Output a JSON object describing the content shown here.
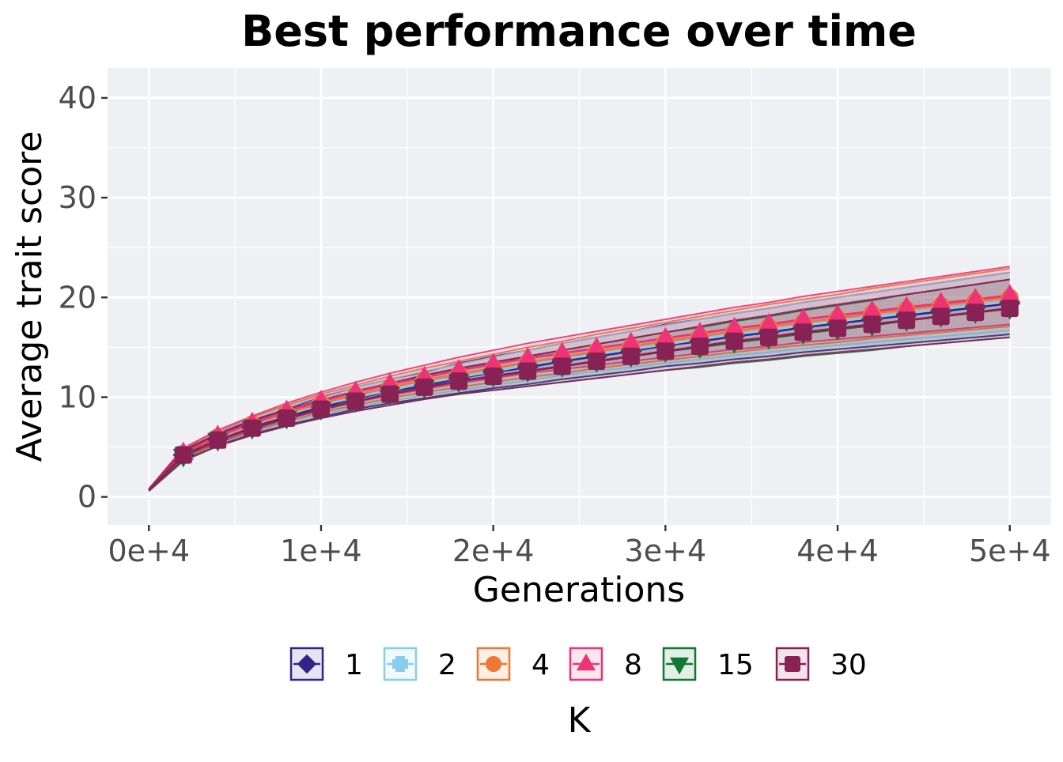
{
  "chart_data": {
    "type": "line",
    "title": "Best performance over time",
    "xlabel": "Generations",
    "ylabel": "Average trait score",
    "xlim": [
      -2400,
      52400
    ],
    "ylim": [
      -2.8,
      43
    ],
    "x_ticks": [
      0,
      10000,
      20000,
      30000,
      40000,
      50000
    ],
    "x_tick_labels": [
      "0e+4",
      "1e+4",
      "2e+4",
      "3e+4",
      "4e+4",
      "5e+4"
    ],
    "y_ticks": [
      0,
      10,
      20,
      30,
      40
    ],
    "y_tick_labels": [
      "0",
      "10",
      "20",
      "30",
      "40"
    ],
    "grid": true,
    "legend": {
      "title": "K",
      "position": "bottom"
    },
    "x": [
      0,
      2000,
      4000,
      6000,
      8000,
      10000,
      12000,
      14000,
      16000,
      18000,
      20000,
      22000,
      24000,
      26000,
      28000,
      30000,
      32000,
      34000,
      36000,
      38000,
      40000,
      42000,
      44000,
      46000,
      48000,
      50000
    ],
    "series": [
      {
        "name": "1",
        "color": "#332288",
        "marker": "diamond",
        "values": [
          0.7,
          4.2,
          5.8,
          7.0,
          8.0,
          9.0,
          9.9,
          10.6,
          11.2,
          11.9,
          12.5,
          13.0,
          13.6,
          14.1,
          14.6,
          15.2,
          15.6,
          16.1,
          16.5,
          17.0,
          17.4,
          17.8,
          18.2,
          18.6,
          19.0,
          19.4
        ],
        "lower": [
          0.6,
          3.7,
          5.2,
          6.3,
          7.2,
          8.0,
          8.8,
          9.4,
          9.9,
          10.4,
          10.9,
          11.3,
          11.8,
          12.2,
          12.6,
          13.1,
          13.4,
          13.8,
          14.1,
          14.5,
          14.8,
          15.1,
          15.4,
          15.7,
          16.0,
          16.3
        ],
        "upper": [
          0.8,
          4.7,
          6.4,
          7.7,
          8.8,
          10.0,
          11.0,
          11.8,
          12.5,
          13.4,
          14.1,
          14.7,
          15.4,
          16.0,
          16.6,
          17.3,
          17.8,
          18.4,
          18.9,
          19.5,
          20.0,
          20.5,
          21.0,
          21.5,
          22.0,
          22.5
        ]
      },
      {
        "name": "2",
        "color": "#88CCEE",
        "marker": "plus",
        "values": [
          0.7,
          4.3,
          5.9,
          7.2,
          8.3,
          9.2,
          10.0,
          10.7,
          11.4,
          12.0,
          12.6,
          13.2,
          13.8,
          14.3,
          14.8,
          15.3,
          15.8,
          16.3,
          16.7,
          17.2,
          17.6,
          18.0,
          18.4,
          18.8,
          19.2,
          19.6
        ],
        "lower": [
          0.6,
          3.8,
          5.3,
          6.5,
          7.5,
          8.3,
          9.0,
          9.6,
          10.2,
          10.7,
          11.2,
          11.7,
          12.2,
          12.6,
          13.0,
          13.4,
          13.8,
          14.2,
          14.5,
          14.9,
          15.2,
          15.5,
          15.8,
          16.1,
          16.4,
          16.7
        ],
        "upper": [
          0.8,
          4.8,
          6.5,
          7.9,
          9.1,
          10.1,
          11.0,
          11.8,
          12.6,
          13.3,
          14.0,
          14.7,
          15.4,
          16.0,
          16.6,
          17.2,
          17.8,
          18.4,
          18.9,
          19.5,
          20.0,
          20.5,
          21.0,
          21.5,
          22.0,
          22.5
        ]
      },
      {
        "name": "4",
        "color": "#EE7733",
        "marker": "circle",
        "values": [
          0.7,
          4.3,
          6.0,
          7.3,
          8.4,
          9.4,
          10.2,
          11.0,
          11.7,
          12.3,
          12.9,
          13.5,
          14.0,
          14.6,
          15.1,
          15.6,
          16.1,
          16.6,
          17.1,
          17.5,
          17.9,
          18.4,
          18.8,
          19.2,
          19.6,
          20.0
        ],
        "lower": [
          0.6,
          3.8,
          5.4,
          6.6,
          7.6,
          8.5,
          9.2,
          9.9,
          10.5,
          11.0,
          11.5,
          12.0,
          12.4,
          12.9,
          13.3,
          13.7,
          14.1,
          14.5,
          14.9,
          15.2,
          15.5,
          15.9,
          16.2,
          16.5,
          16.8,
          17.1
        ],
        "upper": [
          0.8,
          4.8,
          6.6,
          8.0,
          9.2,
          10.3,
          11.2,
          12.1,
          12.9,
          13.6,
          14.3,
          15.0,
          15.6,
          16.3,
          16.9,
          17.5,
          18.1,
          18.7,
          19.3,
          19.8,
          20.3,
          20.9,
          21.4,
          21.9,
          22.4,
          22.9
        ]
      },
      {
        "name": "8",
        "color": "#EE3377",
        "marker": "triangle",
        "values": [
          0.7,
          4.4,
          6.1,
          7.4,
          8.6,
          9.6,
          10.5,
          11.3,
          12.0,
          12.7,
          13.3,
          13.9,
          14.4,
          14.9,
          15.4,
          15.9,
          16.4,
          16.9,
          17.3,
          17.8,
          18.2,
          18.6,
          19.0,
          19.4,
          19.8,
          20.2
        ],
        "lower": [
          0.6,
          3.9,
          5.5,
          6.7,
          7.8,
          8.7,
          9.5,
          10.2,
          10.8,
          11.4,
          11.9,
          12.4,
          12.8,
          13.2,
          13.6,
          14.0,
          14.4,
          14.8,
          15.1,
          15.5,
          15.8,
          16.1,
          16.4,
          16.7,
          17.0,
          17.3
        ],
        "upper": [
          0.8,
          4.9,
          6.7,
          8.1,
          9.4,
          10.5,
          11.5,
          12.4,
          13.2,
          14.0,
          14.7,
          15.4,
          16.0,
          16.6,
          17.2,
          17.8,
          18.4,
          19.0,
          19.5,
          20.1,
          20.6,
          21.1,
          21.6,
          22.1,
          22.6,
          23.1
        ]
      },
      {
        "name": "15",
        "color": "#117733",
        "marker": "triangle-down",
        "values": [
          0.7,
          4.1,
          5.7,
          6.9,
          7.9,
          8.8,
          9.6,
          10.3,
          11.0,
          11.6,
          12.1,
          12.6,
          13.1,
          13.6,
          14.1,
          14.6,
          15.0,
          15.5,
          15.9,
          16.4,
          16.8,
          17.2,
          17.7,
          18.1,
          18.5,
          18.9
        ],
        "lower": [
          0.6,
          3.6,
          5.1,
          6.2,
          7.1,
          7.9,
          8.6,
          9.2,
          9.8,
          10.3,
          10.7,
          11.1,
          11.5,
          11.9,
          12.3,
          12.7,
          13.0,
          13.4,
          13.7,
          14.1,
          14.4,
          14.7,
          15.1,
          15.4,
          15.7,
          16.0
        ],
        "upper": [
          0.8,
          4.6,
          6.3,
          7.6,
          8.7,
          9.7,
          10.6,
          11.4,
          12.2,
          12.9,
          13.5,
          14.1,
          14.7,
          15.3,
          15.9,
          16.5,
          17.0,
          17.6,
          18.1,
          18.7,
          19.2,
          19.7,
          20.3,
          20.8,
          21.3,
          21.8
        ]
      },
      {
        "name": "30",
        "color": "#882255",
        "marker": "square",
        "values": [
          0.7,
          4.2,
          5.7,
          6.9,
          7.9,
          8.8,
          9.6,
          10.3,
          11.0,
          11.6,
          12.1,
          12.6,
          13.1,
          13.6,
          14.1,
          14.6,
          15.1,
          15.6,
          16.0,
          16.5,
          16.9,
          17.3,
          17.7,
          18.1,
          18.5,
          18.9
        ],
        "lower": [
          0.6,
          3.7,
          5.1,
          6.2,
          7.1,
          7.9,
          8.6,
          9.2,
          9.8,
          10.3,
          10.7,
          11.1,
          11.5,
          11.9,
          12.3,
          12.7,
          13.1,
          13.5,
          13.8,
          14.2,
          14.5,
          14.8,
          15.1,
          15.4,
          15.7,
          16.0
        ],
        "upper": [
          0.8,
          4.7,
          6.3,
          7.6,
          8.7,
          9.7,
          10.6,
          11.4,
          12.2,
          12.9,
          13.5,
          14.1,
          14.7,
          15.3,
          15.9,
          16.5,
          17.1,
          17.7,
          18.2,
          18.8,
          19.3,
          19.8,
          20.3,
          20.8,
          21.3,
          21.8
        ]
      }
    ]
  }
}
